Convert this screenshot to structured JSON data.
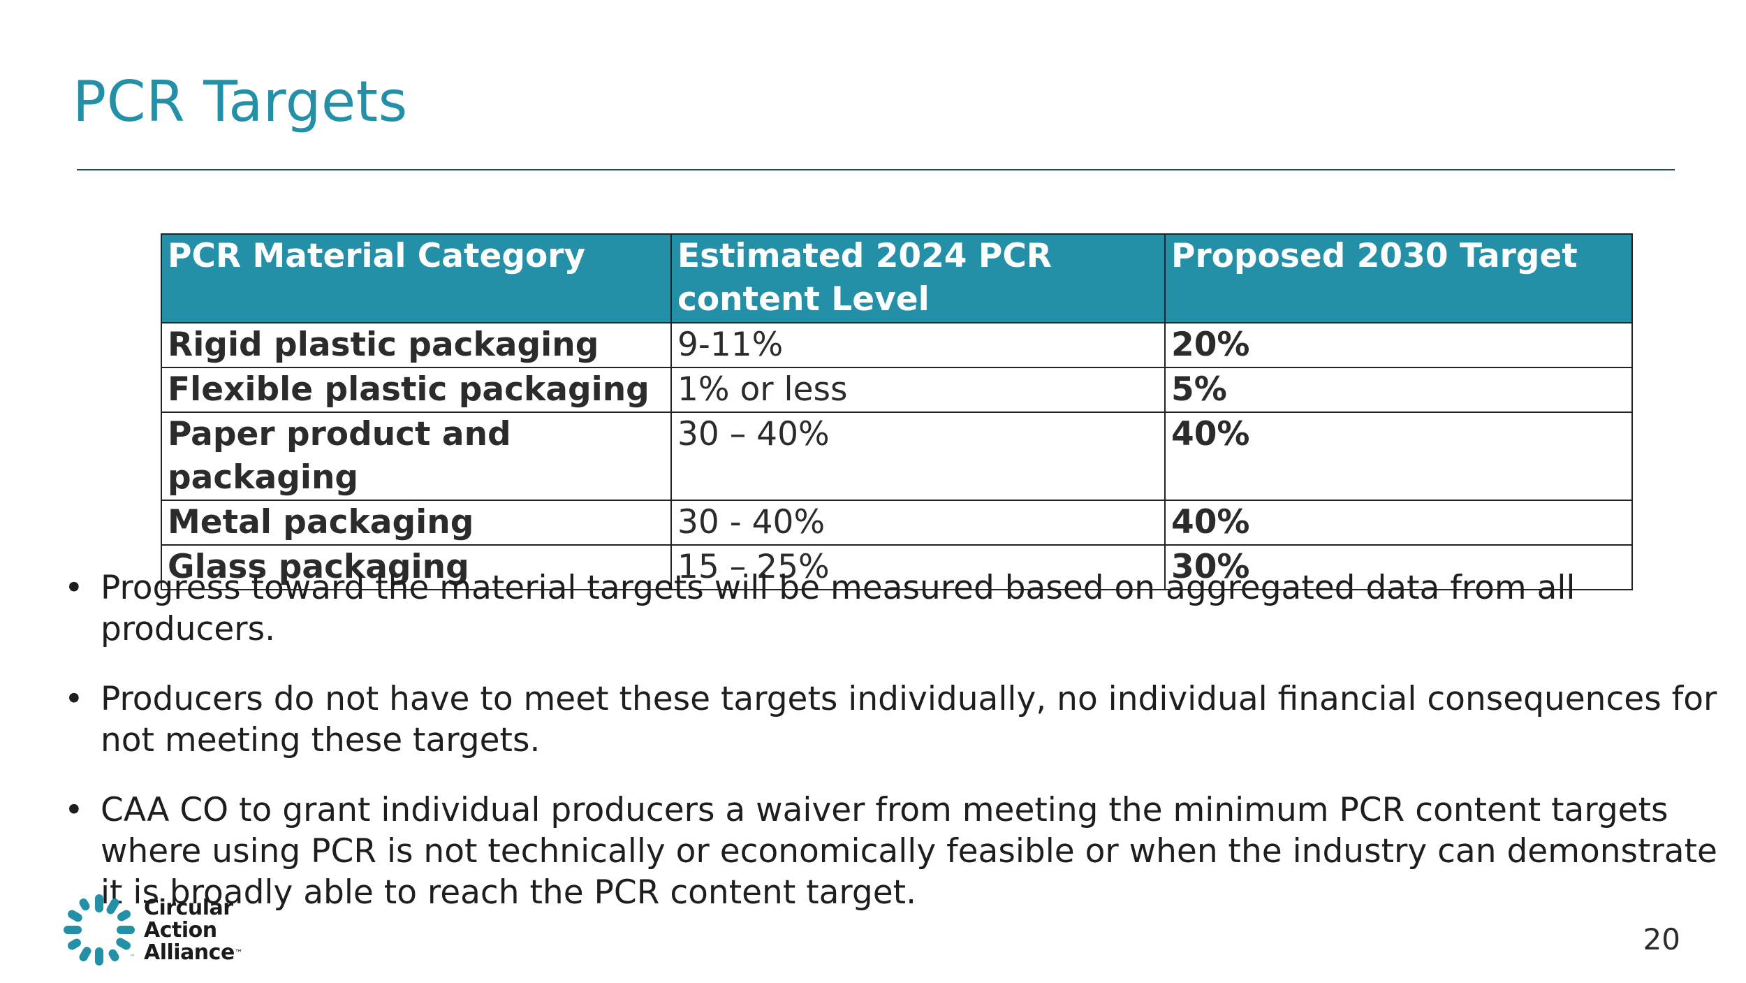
{
  "title": "PCR Targets",
  "table": {
    "headers": [
      "PCR Material Category",
      "Estimated 2024 PCR content Level",
      "Proposed 2030 Target"
    ],
    "rows": [
      {
        "category": "Rigid plastic packaging",
        "estimate": "9-11%",
        "target": "20%"
      },
      {
        "category": "Flexible plastic packaging",
        "estimate": "1% or less",
        "target": "5%"
      },
      {
        "category": "Paper product and packaging",
        "estimate": "30 – 40%",
        "target": "40%"
      },
      {
        "category": "Metal packaging",
        "estimate": "30 - 40%",
        "target": "40%"
      },
      {
        "category": "Glass packaging",
        "estimate": "15 – 25%",
        "target": "30%"
      }
    ]
  },
  "bullets": [
    "Progress toward the material targets will be measured based on aggregated data from all producers.",
    "Producers do not have to meet these targets individually, no individual financial consequences for not meeting these targets.",
    "CAA CO to grant individual producers a waiver from meeting the minimum PCR content targets where using PCR is not technically or economically feasible or when the industry can demonstrate it is broadly able to reach the PCR content target."
  ],
  "bullet_symbol": "•",
  "logo": {
    "line1": "Circular",
    "line2": "Action",
    "line3": "Alliance",
    "trademark": "™",
    "mark_trademark": "™"
  },
  "page_number": "20",
  "colors": {
    "accent": "#2390a8",
    "rule": "#1e4e63",
    "text": "#2b2b2b"
  }
}
